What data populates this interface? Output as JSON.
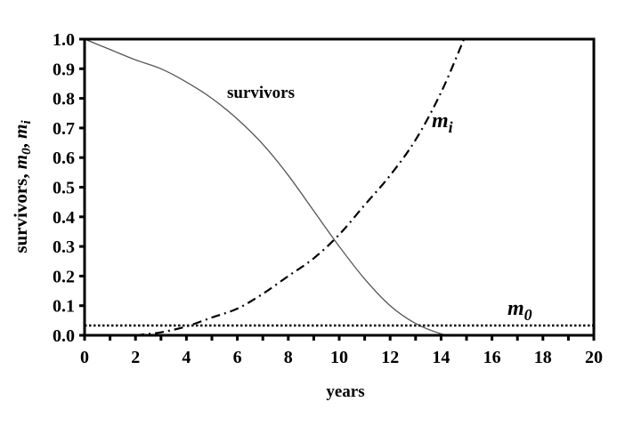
{
  "chart_data": {
    "type": "line",
    "title": "",
    "xlabel": "years",
    "ylabel": "survivors, m0, mi",
    "ylabel_parts": {
      "plain": "survivors, ",
      "m0": "m",
      "m0_sub": "0",
      "sep": ", ",
      "mi": "m",
      "mi_sub": "i"
    },
    "xlim": [
      0,
      20
    ],
    "ylim": [
      0,
      1.0
    ],
    "xticks": [
      "0",
      "2",
      "4",
      "6",
      "8",
      "10",
      "12",
      "14",
      "16",
      "18",
      "20"
    ],
    "yticks": [
      "0.0",
      "0.1",
      "0.2",
      "0.3",
      "0.4",
      "0.5",
      "0.6",
      "0.7",
      "0.8",
      "0.9",
      "1.0"
    ],
    "grid": false,
    "legend": "none",
    "series": [
      {
        "name": "survivors",
        "style": "solid",
        "color": "#555555",
        "x": [
          0,
          1,
          2,
          3,
          4,
          5,
          6,
          7,
          8,
          9,
          10,
          11,
          12,
          13,
          14,
          14.5
        ],
        "y": [
          1.0,
          0.965,
          0.93,
          0.9,
          0.855,
          0.8,
          0.73,
          0.645,
          0.54,
          0.42,
          0.3,
          0.19,
          0.1,
          0.04,
          0.005,
          0.0
        ]
      },
      {
        "name": "mi",
        "style": "dash-dot",
        "color": "#000000",
        "x": [
          2,
          3,
          4,
          5,
          6,
          7,
          8,
          9,
          10,
          11,
          12,
          13,
          14,
          14.9
        ],
        "y": [
          0.0,
          0.01,
          0.03,
          0.06,
          0.09,
          0.14,
          0.2,
          0.26,
          0.34,
          0.44,
          0.54,
          0.66,
          0.82,
          1.0
        ]
      },
      {
        "name": "m0",
        "style": "dotted",
        "color": "#000000",
        "x": [
          0,
          20
        ],
        "y": [
          0.033,
          0.033
        ]
      }
    ],
    "annotations": {
      "survivors": "survivors",
      "mi": {
        "base": "m",
        "sub": "i"
      },
      "m0": {
        "base": "m",
        "sub": "0"
      }
    }
  }
}
